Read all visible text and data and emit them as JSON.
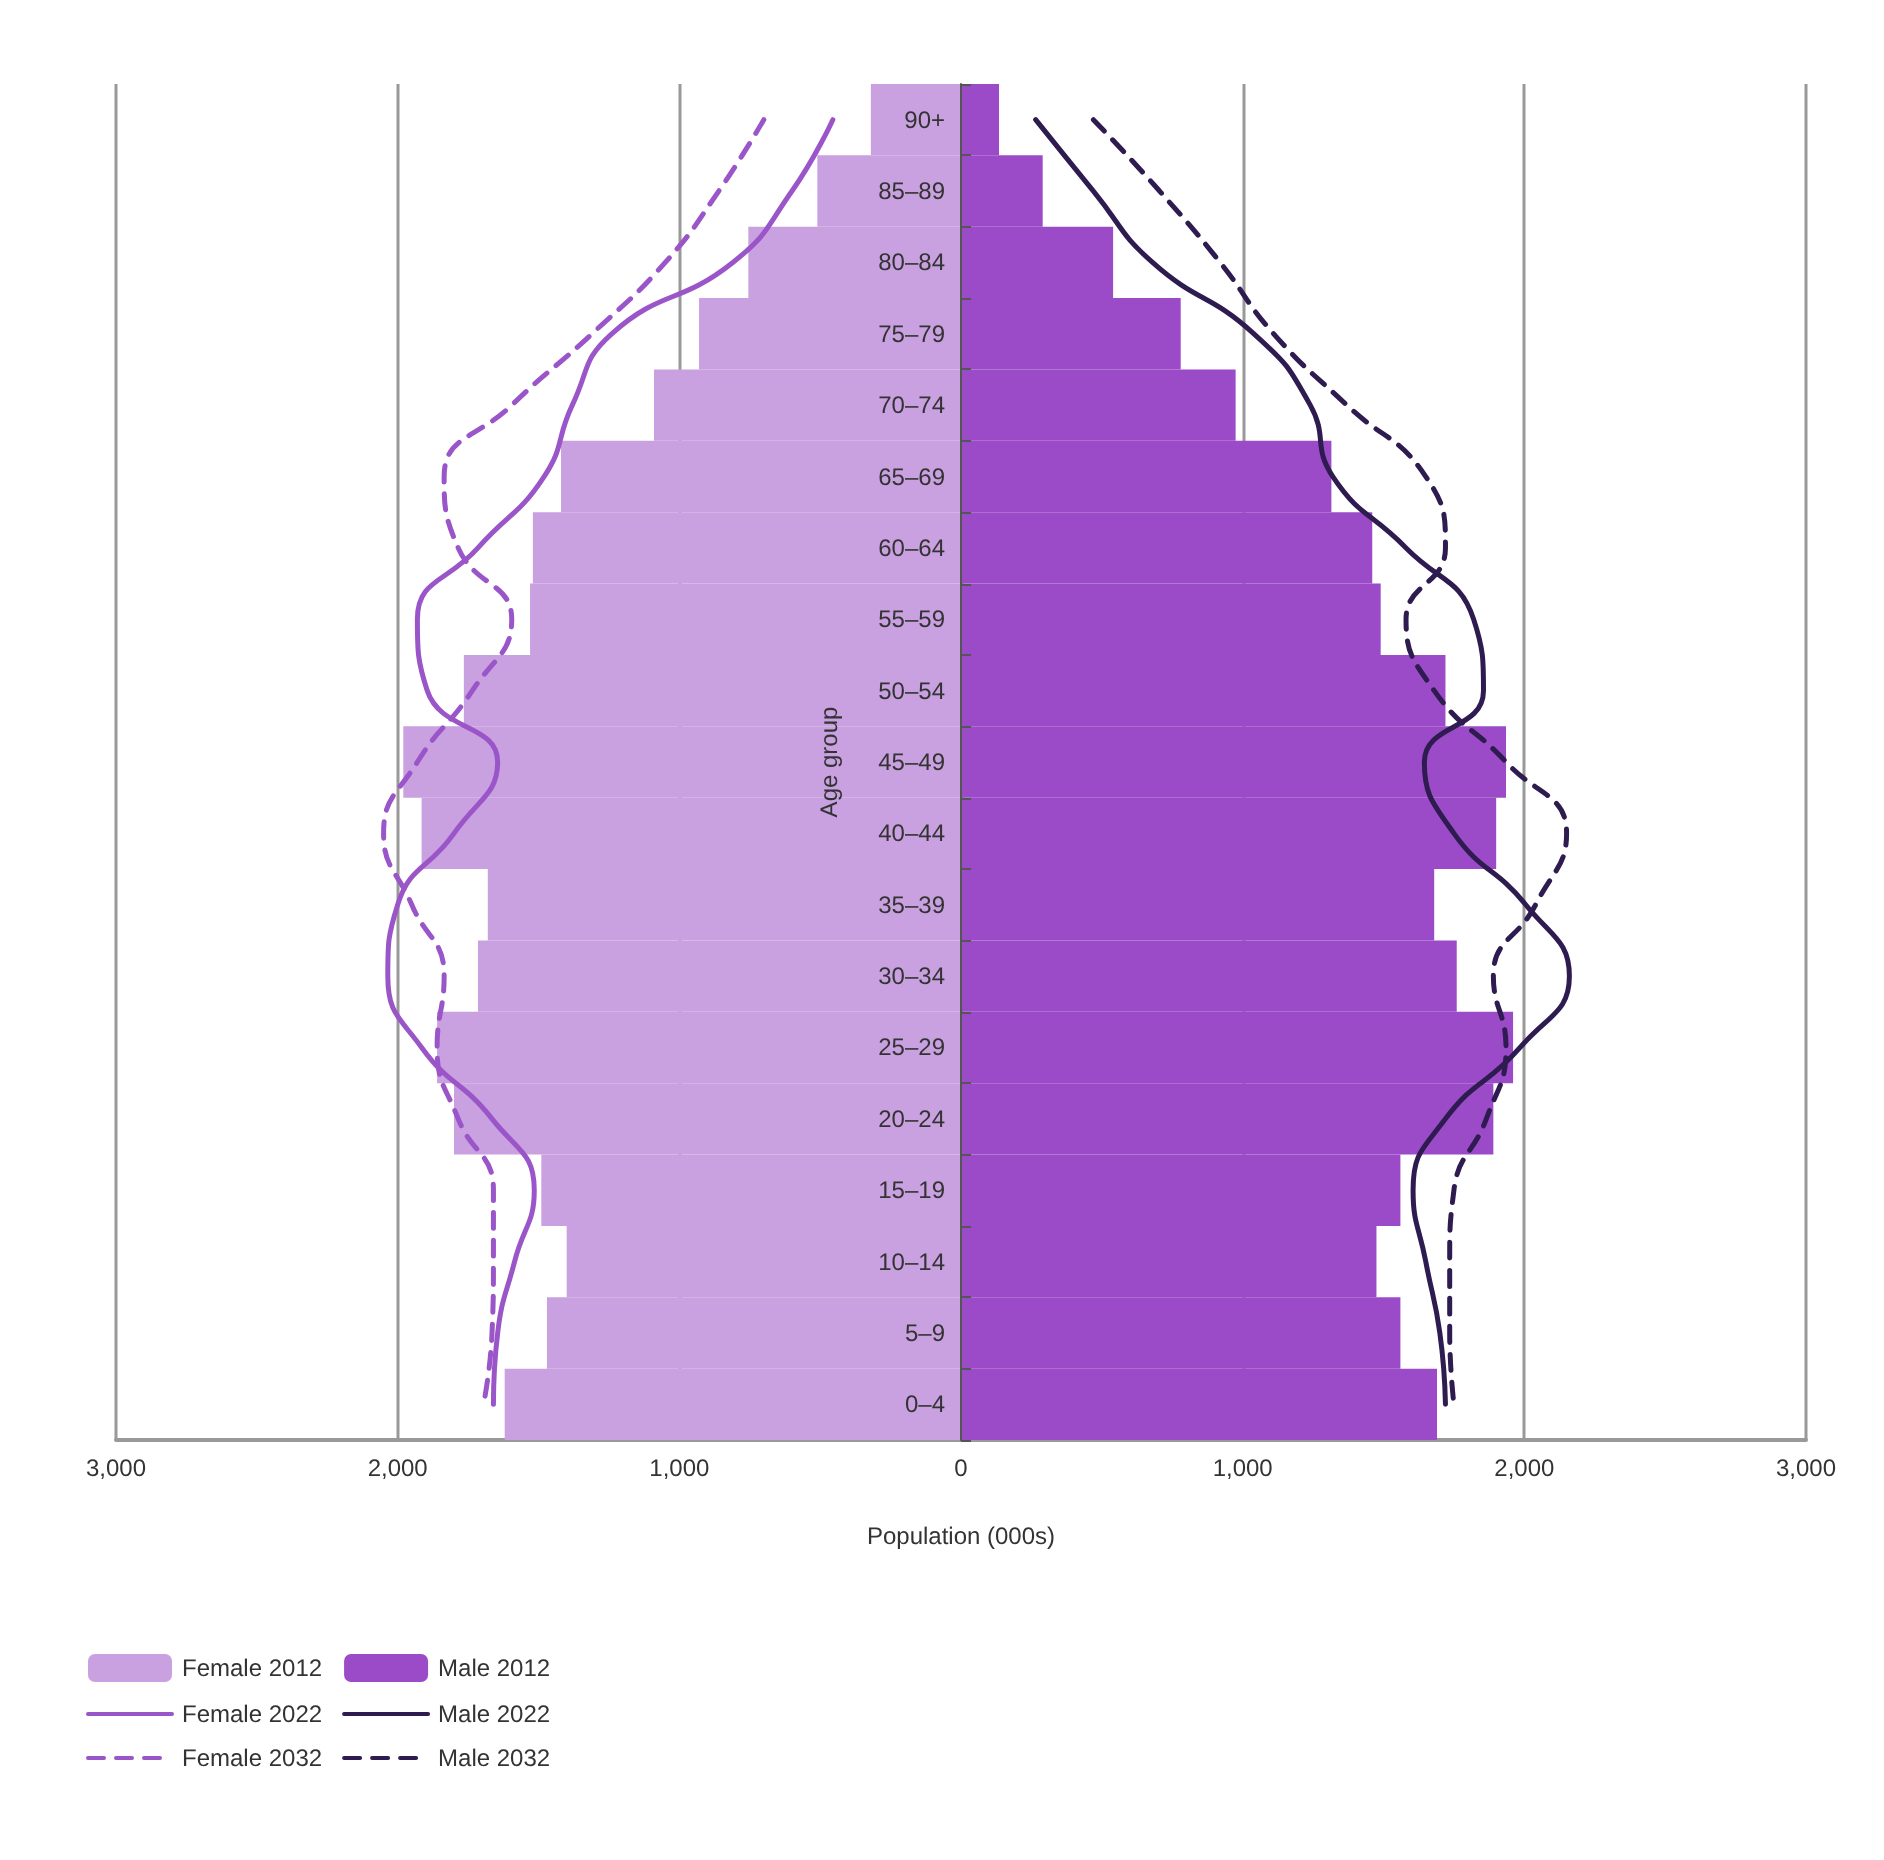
{
  "chart_data": {
    "type": "bar",
    "orientation": "horizontal",
    "xlabel": "Population (000s)",
    "ylabel": "Age group",
    "categories": [
      "90+",
      "85–89",
      "80–84",
      "75–79",
      "70–74",
      "65–69",
      "60–64",
      "55–59",
      "50–54",
      "45–49",
      "40–44",
      "35–39",
      "30–34",
      "25–29",
      "20–24",
      "15–19",
      "10–14",
      "5–9",
      "0–4"
    ],
    "series": [
      {
        "name": "Female 2012",
        "color": "#c9a0e0",
        "values": [
          -320,
          -510,
          -755,
          -930,
          -1090,
          -1420,
          -1520,
          -1530,
          -1765,
          -1980,
          -1915,
          -1680,
          -1715,
          -1860,
          -1800,
          -1490,
          -1400,
          -1470,
          -1620
        ]
      },
      {
        "name": "Female 2022",
        "type": "line",
        "line_style": "solid",
        "color": "#9a55c8",
        "values": [
          -455,
          -600,
          -810,
          -1240,
          -1380,
          -1480,
          -1715,
          -1930,
          -1895,
          -1645,
          -1800,
          -2000,
          -2035,
          -1915,
          -1665,
          -1515,
          -1585,
          -1645,
          -1660
        ]
      },
      {
        "name": "Female 2032",
        "type": "line",
        "line_style": "dashed",
        "color": "#9a55c8",
        "values": [
          -700,
          -860,
          -1050,
          -1310,
          -1595,
          -1835,
          -1785,
          -1595,
          -1735,
          -1930,
          -2050,
          -1950,
          -1835,
          -1860,
          -1785,
          -1660,
          -1660,
          -1665,
          -1695
        ]
      },
      {
        "name": "Male 2012",
        "color": "#9b4bc8",
        "values": [
          135,
          290,
          540,
          780,
          975,
          1315,
          1460,
          1490,
          1720,
          1935,
          1900,
          1680,
          1760,
          1960,
          1890,
          1560,
          1475,
          1560,
          1690
        ]
      },
      {
        "name": "Male 2022",
        "type": "line",
        "line_style": "solid",
        "color": "#2e1b50",
        "values": [
          265,
          470,
          680,
          1040,
          1240,
          1320,
          1580,
          1820,
          1855,
          1645,
          1750,
          2005,
          2160,
          1985,
          1720,
          1605,
          1650,
          1700,
          1720
        ]
      },
      {
        "name": "Male 2032",
        "type": "line",
        "line_style": "dashed",
        "color": "#2e1b50",
        "values": [
          470,
          705,
          920,
          1110,
          1370,
          1650,
          1720,
          1580,
          1680,
          1935,
          2150,
          2040,
          1890,
          1935,
          1865,
          1750,
          1735,
          1735,
          1750
        ]
      }
    ],
    "xlim": [
      -3000,
      3000
    ],
    "xticks": [
      {
        "value": -3000,
        "label": "3,000"
      },
      {
        "value": -2000,
        "label": "2,000"
      },
      {
        "value": -1000,
        "label": "1,000"
      },
      {
        "value": 0,
        "label": "0"
      },
      {
        "value": 1000,
        "label": "1,000"
      },
      {
        "value": 2000,
        "label": "2,000"
      },
      {
        "value": 3000,
        "label": "3,000"
      }
    ],
    "stacked": true,
    "grid": "x",
    "legend": "bottom left",
    "marker": "none"
  }
}
